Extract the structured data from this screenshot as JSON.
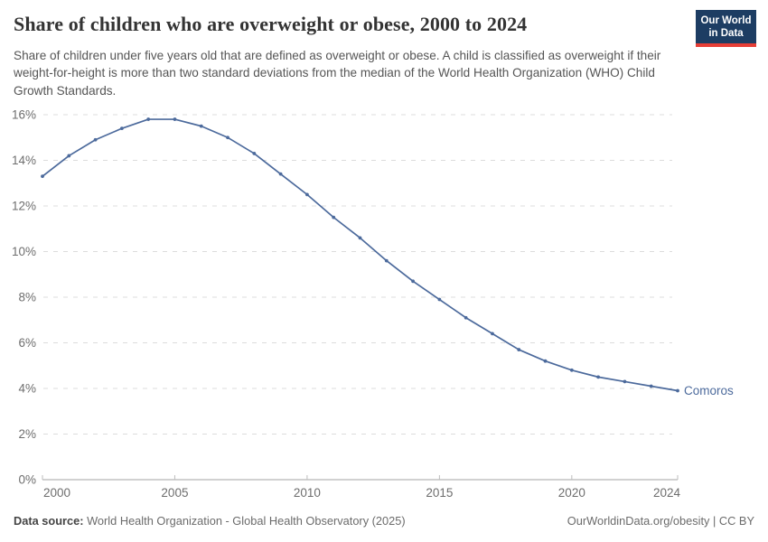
{
  "header": {
    "title": "Share of children who are overweight or obese, 2000 to 2024",
    "subtitle": "Share of children under five years old that are defined as overweight or obese. A child is classified as overweight if their weight-for-height is more than two standard deviations from the median of the World Health Organization (WHO) Child Growth Standards.",
    "logo": {
      "line1": "Our World",
      "line2": "in Data",
      "bg_color": "#1d3d63",
      "bar_color": "#e63e36"
    }
  },
  "chart_data": {
    "type": "line",
    "title": "Share of children who are overweight or obese, 2000 to 2024",
    "xlabel": "",
    "ylabel": "",
    "xlim": [
      2000,
      2024
    ],
    "ylim": [
      0,
      16
    ],
    "xticks": [
      2000,
      2005,
      2010,
      2015,
      2020,
      2024
    ],
    "yticks": [
      0,
      2,
      4,
      6,
      8,
      10,
      12,
      14,
      16
    ],
    "ytick_suffix": "%",
    "grid": "horizontal-dashed",
    "legend": "end-of-line-label",
    "x": [
      2000,
      2001,
      2002,
      2003,
      2004,
      2005,
      2006,
      2007,
      2008,
      2009,
      2010,
      2011,
      2012,
      2013,
      2014,
      2015,
      2016,
      2017,
      2018,
      2019,
      2020,
      2021,
      2022,
      2023,
      2024
    ],
    "series": [
      {
        "name": "Comoros",
        "color": "#4c6a9c",
        "values": [
          13.3,
          14.2,
          14.9,
          15.4,
          15.8,
          15.8,
          15.5,
          15.0,
          14.3,
          13.4,
          12.5,
          11.5,
          10.6,
          9.6,
          8.7,
          7.9,
          7.1,
          6.4,
          5.7,
          5.2,
          4.8,
          4.5,
          4.3,
          4.1,
          3.9
        ]
      }
    ]
  },
  "footer": {
    "source_label": "Data source:",
    "source_text": " World Health Organization - Global Health Observatory (2025)",
    "credit": "OurWorldinData.org/obesity | CC BY"
  }
}
